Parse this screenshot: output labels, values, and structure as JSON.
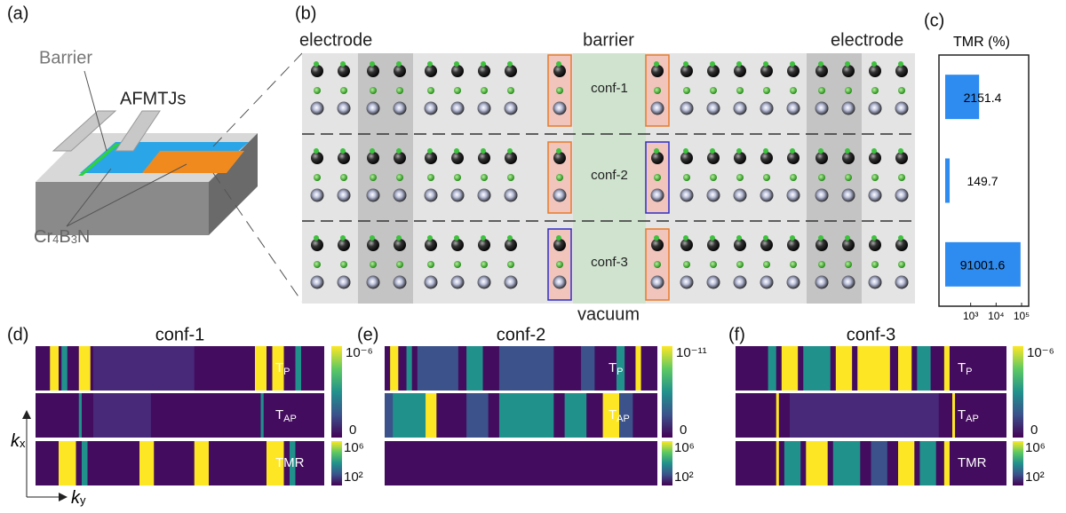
{
  "panel_labels": [
    "(a)",
    "(b)",
    "(c)",
    "(d)",
    "(e)",
    "(f)"
  ],
  "panel_a": {
    "barrier": "Barrier",
    "device": "AFMTJs",
    "material": [
      "Cr",
      "4",
      "B",
      "3",
      "N"
    ]
  },
  "panel_b": {
    "left": "electrode",
    "middle": "barrier",
    "right": "electrode",
    "bottom": "vacuum",
    "configs": [
      "conf-1",
      "conf-2",
      "conf-3"
    ]
  },
  "chart_data": {
    "type": "bar",
    "orientation": "horizontal",
    "title": "TMR (%)",
    "values": [
      2151.4,
      149.7,
      91001.6
    ],
    "color": "#2e8bf0",
    "xscale": "log",
    "xlim": [
      100,
      100000
    ],
    "xticks": [
      {
        "value": 1000,
        "label": "10³"
      },
      {
        "value": 10000,
        "label": "10⁴"
      },
      {
        "value": 100000,
        "label": "10⁵"
      }
    ]
  },
  "heatmaps": [
    {
      "title": "conf-1",
      "rows": [
        [
          "T",
          "P"
        ],
        [
          "T",
          "AP"
        ],
        [
          "TMR"
        ]
      ],
      "colorbar_t": [
        "10⁻⁶",
        "0"
      ],
      "colorbar_tmr": [
        "10⁶",
        "10²"
      ]
    },
    {
      "title": "conf-2",
      "rows": [
        [
          "T",
          "P"
        ],
        [
          "T",
          "AP"
        ]
      ],
      "colorbar_t": [
        "10⁻¹¹",
        "0"
      ],
      "colorbar_tmr": [
        "10⁶",
        "10²"
      ]
    },
    {
      "title": "conf-3",
      "rows": [
        [
          "T",
          "P"
        ],
        [
          "T",
          "AP"
        ],
        [
          "TMR"
        ]
      ],
      "colorbar_t": [
        "10⁻⁶",
        "0"
      ],
      "colorbar_tmr": [
        "10⁶",
        "10²"
      ]
    }
  ],
  "axes": {
    "x": [
      "k",
      "x"
    ],
    "y": [
      "k",
      "y"
    ]
  }
}
